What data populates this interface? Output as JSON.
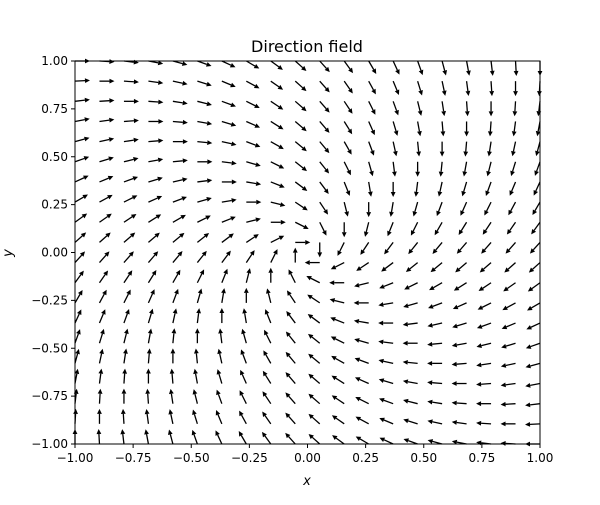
{
  "chart_data": {
    "type": "quiver",
    "title": "Direction field",
    "xlabel": "x",
    "ylabel": "y",
    "xlim": [
      -1.0,
      1.0
    ],
    "ylim": [
      -1.0,
      1.0
    ],
    "xticks": [
      -1.0,
      -0.75,
      -0.5,
      -0.25,
      0.0,
      0.25,
      0.5,
      0.75,
      1.0
    ],
    "yticks": [
      -1.0,
      -0.75,
      -0.5,
      -0.25,
      0.0,
      0.25,
      0.5,
      0.75,
      1.0
    ],
    "xtick_labels": [
      "−1.00",
      "−0.75",
      "−0.50",
      "−0.25",
      "0.00",
      "0.25",
      "0.50",
      "0.75",
      "1.00"
    ],
    "ytick_labels": [
      "−1.00",
      "−0.75",
      "−0.50",
      "−0.25",
      "0.00",
      "0.25",
      "0.50",
      "0.75",
      "1.00"
    ],
    "grid": false,
    "field": {
      "grid_n": 20,
      "range": [
        -1.0,
        1.0
      ],
      "dx": "y - x",
      "dy": "-x - y",
      "normalized": true
    },
    "arrow_color": "#000000"
  }
}
